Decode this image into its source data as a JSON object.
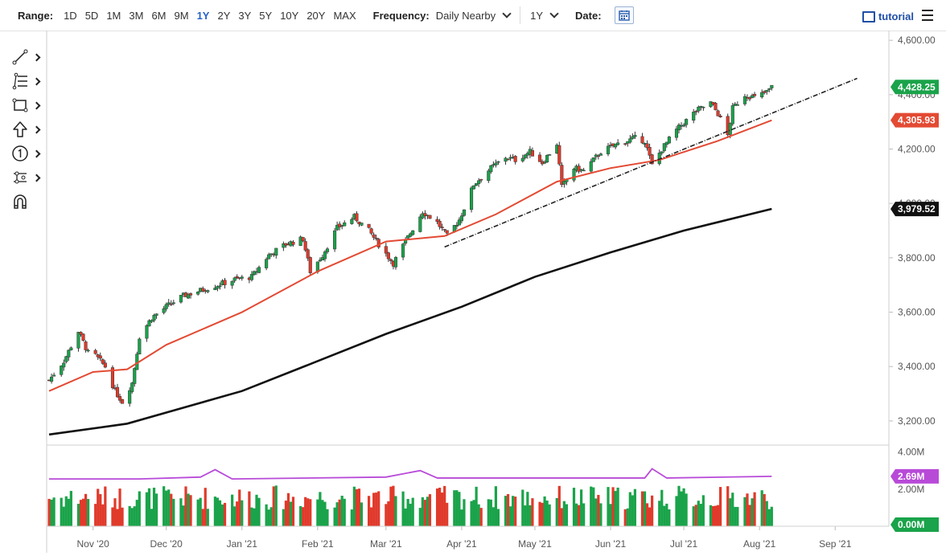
{
  "toolbar": {
    "range_label": "Range:",
    "ranges": [
      "1D",
      "5D",
      "1M",
      "3M",
      "6M",
      "9M",
      "1Y",
      "2Y",
      "3Y",
      "5Y",
      "10Y",
      "20Y",
      "MAX"
    ],
    "active_range": "1Y",
    "frequency_label": "Frequency:",
    "frequency_value": "Daily Nearby",
    "period_value": "1Y",
    "date_label": "Date:",
    "tutorial_label": "tutorial"
  },
  "tool_icons": [
    "trendline-icon",
    "fibonacci-icon",
    "rectangle-icon",
    "arrow-up-icon",
    "number-one-icon",
    "node-path-icon",
    "magnet-icon"
  ],
  "colors": {
    "up": "#1aa34a",
    "down": "#e03a2b",
    "ma50": "#e34a33",
    "ma200": "#111111",
    "volume_ma": "#b84ad8",
    "last_price_badge": "#1aa34a",
    "ma50_badge": "#e34a33",
    "ma200_badge": "#111111"
  },
  "chart_data": {
    "type": "candlestick",
    "x_ticks": [
      "Nov '20",
      "Dec '20",
      "Jan '21",
      "Feb '21",
      "Mar '21",
      "Apr '21",
      "May '21",
      "Jun '21",
      "Jul '21",
      "Aug '21",
      "Sep '21"
    ],
    "y_ticks": [
      "4,600.00",
      "4,400.00",
      "4,200.00",
      "4,000.00",
      "3,800.00",
      "3,600.00",
      "3,400.00",
      "3,200.00"
    ],
    "ylim": [
      3120,
      4630
    ],
    "grid": false,
    "price_path": [
      {
        "date": "2020-10-14",
        "close": 3350
      },
      {
        "date": "2020-10-20",
        "close": 3420
      },
      {
        "date": "2020-10-26",
        "close": 3530
      },
      {
        "date": "2020-10-30",
        "close": 3450
      },
      {
        "date": "2020-11-02",
        "close": 3440
      },
      {
        "date": "2020-11-06",
        "close": 3400
      },
      {
        "date": "2020-11-10",
        "close": 3310
      },
      {
        "date": "2020-11-13",
        "close": 3270
      },
      {
        "date": "2020-11-17",
        "close": 3340
      },
      {
        "date": "2020-11-20",
        "close": 3510
      },
      {
        "date": "2020-11-25",
        "close": 3580
      },
      {
        "date": "2020-12-01",
        "close": 3620
      },
      {
        "date": "2020-12-08",
        "close": 3660
      },
      {
        "date": "2020-12-15",
        "close": 3680
      },
      {
        "date": "2020-12-22",
        "close": 3700
      },
      {
        "date": "2020-12-29",
        "close": 3720
      },
      {
        "date": "2021-01-05",
        "close": 3730
      },
      {
        "date": "2021-01-12",
        "close": 3810
      },
      {
        "date": "2021-01-19",
        "close": 3850
      },
      {
        "date": "2021-01-26",
        "close": 3870
      },
      {
        "date": "2021-01-29",
        "close": 3750
      },
      {
        "date": "2021-02-03",
        "close": 3810
      },
      {
        "date": "2021-02-09",
        "close": 3910
      },
      {
        "date": "2021-02-16",
        "close": 3950
      },
      {
        "date": "2021-02-22",
        "close": 3900
      },
      {
        "date": "2021-02-26",
        "close": 3850
      },
      {
        "date": "2021-03-04",
        "close": 3780
      },
      {
        "date": "2021-03-09",
        "close": 3860
      },
      {
        "date": "2021-03-16",
        "close": 3970
      },
      {
        "date": "2021-03-22",
        "close": 3930
      },
      {
        "date": "2021-03-26",
        "close": 3880
      },
      {
        "date": "2021-03-31",
        "close": 3940
      },
      {
        "date": "2021-04-06",
        "close": 4070
      },
      {
        "date": "2021-04-13",
        "close": 4130
      },
      {
        "date": "2021-04-19",
        "close": 4170
      },
      {
        "date": "2021-04-23",
        "close": 4160
      },
      {
        "date": "2021-04-29",
        "close": 4190
      },
      {
        "date": "2021-05-04",
        "close": 4150
      },
      {
        "date": "2021-05-10",
        "close": 4220
      },
      {
        "date": "2021-05-12",
        "close": 4060
      },
      {
        "date": "2021-05-17",
        "close": 4130
      },
      {
        "date": "2021-05-21",
        "close": 4120
      },
      {
        "date": "2021-05-28",
        "close": 4190
      },
      {
        "date": "2021-06-04",
        "close": 4220
      },
      {
        "date": "2021-06-11",
        "close": 4240
      },
      {
        "date": "2021-06-15",
        "close": 4230
      },
      {
        "date": "2021-06-18",
        "close": 4140
      },
      {
        "date": "2021-06-22",
        "close": 4200
      },
      {
        "date": "2021-06-28",
        "close": 4270
      },
      {
        "date": "2021-07-06",
        "close": 4340
      },
      {
        "date": "2021-07-12",
        "close": 4370
      },
      {
        "date": "2021-07-15",
        "close": 4330
      },
      {
        "date": "2021-07-19",
        "close": 4250
      },
      {
        "date": "2021-07-21",
        "close": 4350
      },
      {
        "date": "2021-07-26",
        "close": 4400
      },
      {
        "date": "2021-07-30",
        "close": 4390
      },
      {
        "date": "2021-08-04",
        "close": 4410
      },
      {
        "date": "2021-08-06",
        "close": 4428
      }
    ],
    "ma50": [
      {
        "date": "2020-10-14",
        "value": 3310
      },
      {
        "date": "2020-11-01",
        "value": 3380
      },
      {
        "date": "2020-11-15",
        "value": 3390
      },
      {
        "date": "2020-12-01",
        "value": 3480
      },
      {
        "date": "2021-01-01",
        "value": 3600
      },
      {
        "date": "2021-02-01",
        "value": 3750
      },
      {
        "date": "2021-03-01",
        "value": 3860
      },
      {
        "date": "2021-03-25",
        "value": 3880
      },
      {
        "date": "2021-04-15",
        "value": 3960
      },
      {
        "date": "2021-05-10",
        "value": 4080
      },
      {
        "date": "2021-06-01",
        "value": 4130
      },
      {
        "date": "2021-06-21",
        "value": 4160
      },
      {
        "date": "2021-07-15",
        "value": 4230
      },
      {
        "date": "2021-08-06",
        "value": 4306
      }
    ],
    "ma200": [
      {
        "date": "2020-10-14",
        "value": 3150
      },
      {
        "date": "2020-11-15",
        "value": 3190
      },
      {
        "date": "2021-01-01",
        "value": 3310
      },
      {
        "date": "2021-02-01",
        "value": 3420
      },
      {
        "date": "2021-03-01",
        "value": 3520
      },
      {
        "date": "2021-04-01",
        "value": 3620
      },
      {
        "date": "2021-05-01",
        "value": 3730
      },
      {
        "date": "2021-06-01",
        "value": 3820
      },
      {
        "date": "2021-07-01",
        "value": 3900
      },
      {
        "date": "2021-08-06",
        "value": 3980
      }
    ],
    "trendline": {
      "start": {
        "date": "2021-03-25",
        "value": 3840
      },
      "end": {
        "date": "2021-09-10",
        "value": 4460
      }
    },
    "last_price": "4,428.25",
    "ma50_last": "4,305.93",
    "ma200_last": "3,979.52",
    "volume": {
      "y_ticks": [
        "4.00M",
        "2.00M"
      ],
      "ylim": [
        0,
        4.2
      ],
      "average_last": "2.69M",
      "zero_label": "0.00M",
      "average_path": [
        {
          "date": "2020-10-14",
          "value": 2.55
        },
        {
          "date": "2020-11-20",
          "value": 2.55
        },
        {
          "date": "2020-12-15",
          "value": 2.65
        },
        {
          "date": "2020-12-21",
          "value": 3.05
        },
        {
          "date": "2020-12-28",
          "value": 2.55
        },
        {
          "date": "2021-03-01",
          "value": 2.65
        },
        {
          "date": "2021-03-15",
          "value": 3.0
        },
        {
          "date": "2021-03-22",
          "value": 2.6
        },
        {
          "date": "2021-06-15",
          "value": 2.6
        },
        {
          "date": "2021-06-18",
          "value": 3.1
        },
        {
          "date": "2021-06-24",
          "value": 2.6
        },
        {
          "date": "2021-08-06",
          "value": 2.69
        }
      ]
    }
  }
}
